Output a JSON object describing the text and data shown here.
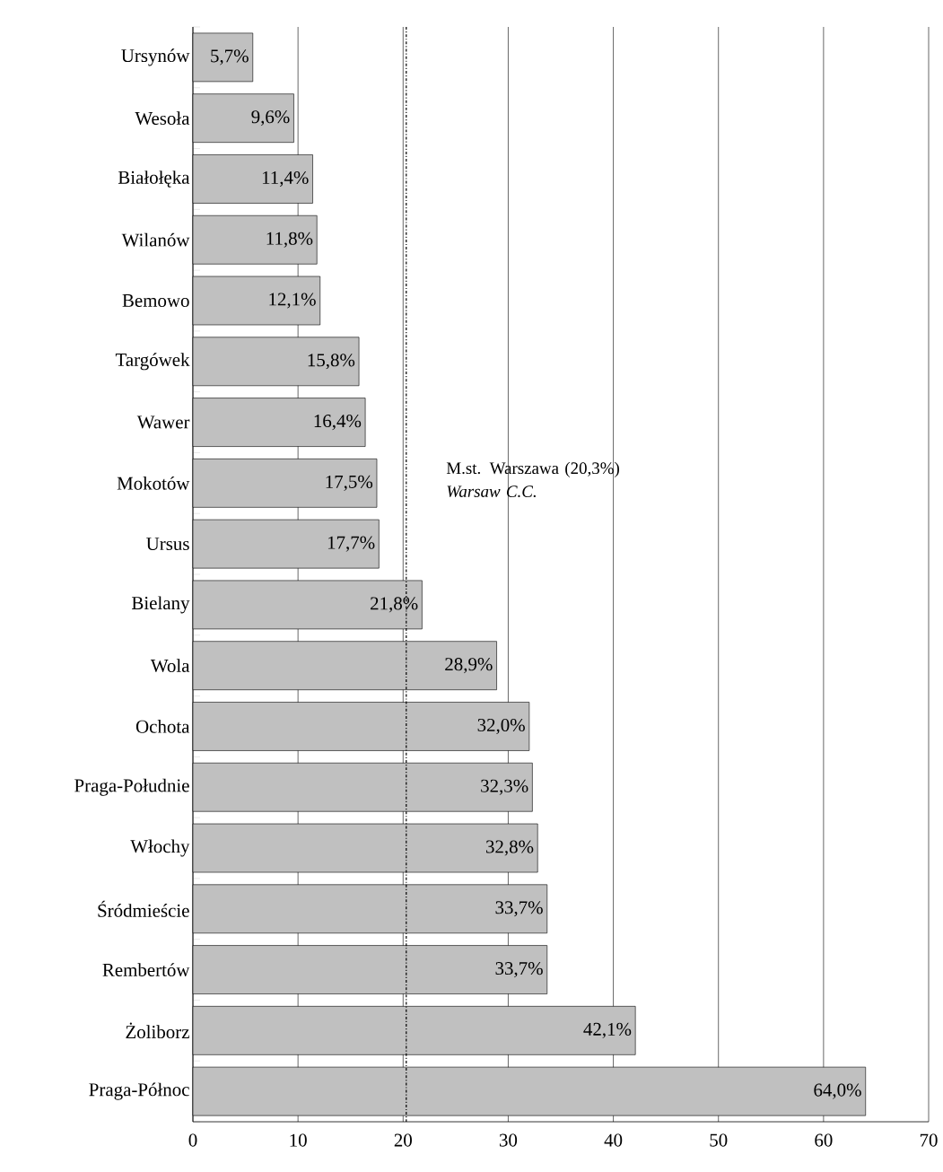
{
  "chart_data": {
    "type": "bar",
    "orientation": "horizontal",
    "categories": [
      "Ursynów",
      "Wesoła",
      "Białołęka",
      "Wilanów",
      "Bemowo",
      "Targówek",
      "Wawer",
      "Mokotów",
      "Ursus",
      "Bielany",
      "Wola",
      "Ochota",
      "Praga-Południe",
      "Włochy",
      "Śródmieście",
      "Rembertów",
      "Żoliborz",
      "Praga-Północ"
    ],
    "values": [
      5.7,
      9.6,
      11.4,
      11.8,
      12.1,
      15.8,
      16.4,
      17.5,
      17.7,
      21.8,
      28.9,
      32.0,
      32.3,
      32.8,
      33.7,
      33.7,
      42.1,
      64.0
    ],
    "value_labels": [
      "5,7%",
      "9,6%",
      "11,4%",
      "11,8%",
      "12,1%",
      "15,8%",
      "16,4%",
      "17,5%",
      "17,7%",
      "21,8%",
      "28,9%",
      "32,0%",
      "32,3%",
      "32,8%",
      "33,7%",
      "33,7%",
      "42,1%",
      "64,0%"
    ],
    "color": "#c0c0c0",
    "xlim": [
      0,
      70
    ],
    "xticks": [
      0,
      10,
      20,
      30,
      40,
      50,
      60,
      70
    ],
    "grid": "x",
    "ref_lines": [
      {
        "axis": "x",
        "value": 20.3,
        "label": "M.st. Warszawa (20,3%) *Warsaw C.C.*",
        "line_style": "dashdot"
      }
    ]
  }
}
